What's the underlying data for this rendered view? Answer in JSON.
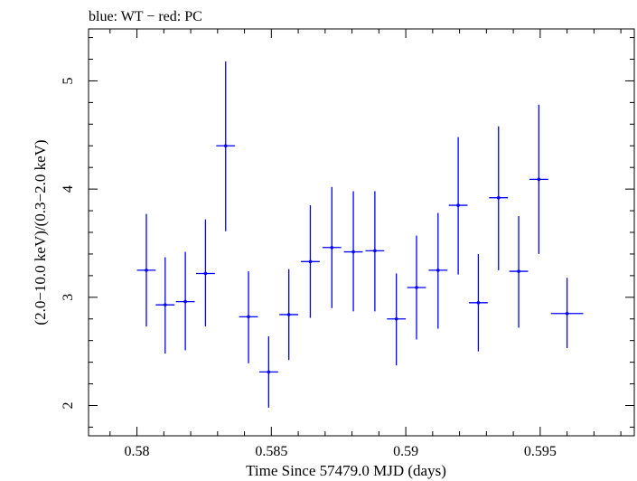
{
  "chart_data": {
    "type": "scatter",
    "title": "blue: WT − red: PC",
    "xlabel": "Time Since 57479.0 MJD (days)",
    "ylabel": "(2.0−10.0 keV)/(0.3−2.0 keV)",
    "xlim": [
      0.5782,
      0.5985
    ],
    "ylim": [
      1.72,
      5.48
    ],
    "x_ticks": [
      0.58,
      0.585,
      0.59,
      0.595
    ],
    "x_tick_labels": [
      "0.58",
      "0.585",
      "0.59",
      "0.595"
    ],
    "y_ticks": [
      2,
      3,
      4,
      5
    ],
    "y_tick_labels": [
      "2",
      "3",
      "4",
      "5"
    ],
    "grid": false,
    "series": [
      {
        "color": "#0000ff",
        "points": [
          {
            "x": 0.58035,
            "y": 3.25,
            "xerr": 0.00035,
            "ylo": 2.73,
            "yhi": 3.77
          },
          {
            "x": 0.58105,
            "y": 2.93,
            "xerr": 0.00035,
            "ylo": 2.48,
            "yhi": 3.37
          },
          {
            "x": 0.5818,
            "y": 2.96,
            "xerr": 0.00035,
            "ylo": 2.51,
            "yhi": 3.42
          },
          {
            "x": 0.58255,
            "y": 3.22,
            "xerr": 0.00035,
            "ylo": 2.73,
            "yhi": 3.72
          },
          {
            "x": 0.5833,
            "y": 4.4,
            "xerr": 0.00035,
            "ylo": 3.61,
            "yhi": 5.18
          },
          {
            "x": 0.58415,
            "y": 2.82,
            "xerr": 0.00035,
            "ylo": 2.39,
            "yhi": 3.24
          },
          {
            "x": 0.5849,
            "y": 2.31,
            "xerr": 0.00035,
            "ylo": 1.98,
            "yhi": 2.64
          },
          {
            "x": 0.58565,
            "y": 2.84,
            "xerr": 0.00035,
            "ylo": 2.42,
            "yhi": 3.26
          },
          {
            "x": 0.58645,
            "y": 3.33,
            "xerr": 0.00035,
            "ylo": 2.81,
            "yhi": 3.85
          },
          {
            "x": 0.58725,
            "y": 3.46,
            "xerr": 0.00035,
            "ylo": 2.9,
            "yhi": 4.02
          },
          {
            "x": 0.58805,
            "y": 3.42,
            "xerr": 0.00035,
            "ylo": 2.87,
            "yhi": 3.98
          },
          {
            "x": 0.58885,
            "y": 3.43,
            "xerr": 0.00035,
            "ylo": 2.87,
            "yhi": 3.98
          },
          {
            "x": 0.58965,
            "y": 2.8,
            "xerr": 0.00035,
            "ylo": 2.37,
            "yhi": 3.22
          },
          {
            "x": 0.5904,
            "y": 3.09,
            "xerr": 0.00035,
            "ylo": 2.61,
            "yhi": 3.57
          },
          {
            "x": 0.5912,
            "y": 3.25,
            "xerr": 0.00035,
            "ylo": 2.71,
            "yhi": 3.78
          },
          {
            "x": 0.59195,
            "y": 3.85,
            "xerr": 0.00035,
            "ylo": 3.21,
            "yhi": 4.48
          },
          {
            "x": 0.5927,
            "y": 2.95,
            "xerr": 0.00035,
            "ylo": 2.5,
            "yhi": 3.4
          },
          {
            "x": 0.59345,
            "y": 3.92,
            "xerr": 0.00035,
            "ylo": 3.25,
            "yhi": 4.58
          },
          {
            "x": 0.5942,
            "y": 3.24,
            "xerr": 0.00035,
            "ylo": 2.72,
            "yhi": 3.75
          },
          {
            "x": 0.59495,
            "y": 4.09,
            "xerr": 0.00035,
            "ylo": 3.4,
            "yhi": 4.78
          },
          {
            "x": 0.596,
            "y": 2.85,
            "xerr": 0.0006,
            "ylo": 2.53,
            "yhi": 3.18
          }
        ]
      }
    ]
  }
}
